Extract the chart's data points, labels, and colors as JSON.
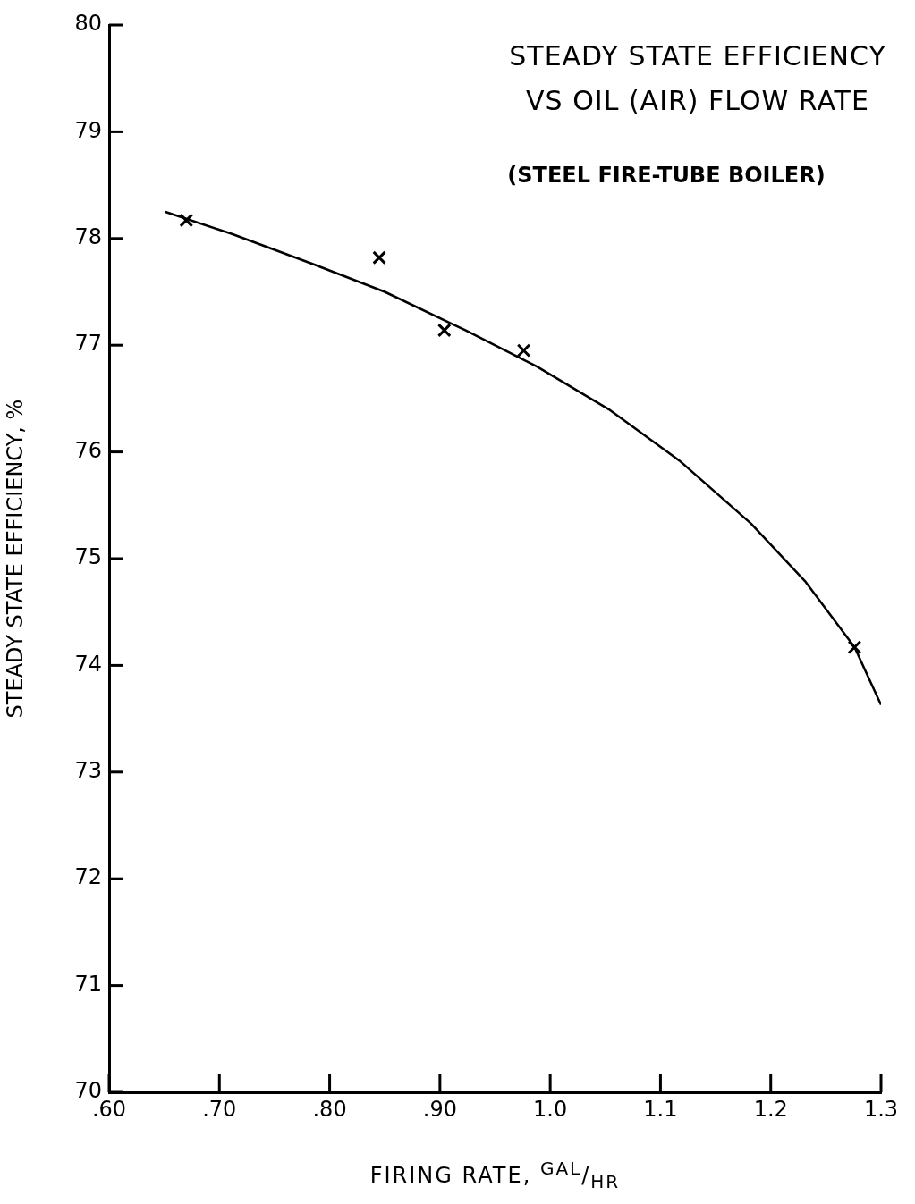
{
  "chart_data": {
    "type": "scatter",
    "title": "STEADY STATE EFFICIENCY VS OIL (AIR) FLOW RATE",
    "subtitle": "(STEEL FIRE-TUBE BOILER)",
    "xlabel": "FIRING RATE, $^{GAL}$/$_{HR}$",
    "ylabel": "STEADY STATE EFFICIENCY, %",
    "xlim": [
      0.6,
      1.3
    ],
    "xticks": [
      {
        "value": 0.6,
        "label": ".60"
      },
      {
        "value": 0.7,
        "label": ".70"
      },
      {
        "value": 0.8,
        "label": ".80"
      },
      {
        "value": 0.9,
        "label": ".90"
      },
      {
        "value": 1.0,
        "label": "1.0"
      },
      1.1,
      1.2,
      1.3
    ],
    "ylim": [
      70,
      80
    ],
    "yticks": [
      70,
      71,
      72,
      73,
      74,
      75,
      76,
      77,
      78,
      79,
      80
    ],
    "grid": false,
    "legend": false,
    "series": [
      {
        "type": "scatter",
        "color": "#000000",
        "marker": "cross",
        "x": [
          0.67,
          0.845,
          0.904,
          0.976,
          1.276
        ],
        "values": [
          78.17,
          77.82,
          77.14,
          76.95,
          74.17
        ]
      },
      {
        "type": "line",
        "color": "#000000",
        "marker": "none",
        "line_style": "solid",
        "x": [
          0.651,
          0.712,
          0.785,
          0.85,
          0.923,
          0.988,
          1.053,
          1.117,
          1.182,
          1.231,
          1.276,
          1.3
        ],
        "values": [
          78.25,
          78.04,
          77.76,
          77.5,
          77.14,
          76.8,
          76.4,
          75.92,
          75.33,
          74.79,
          74.17,
          73.63
        ]
      }
    ]
  }
}
